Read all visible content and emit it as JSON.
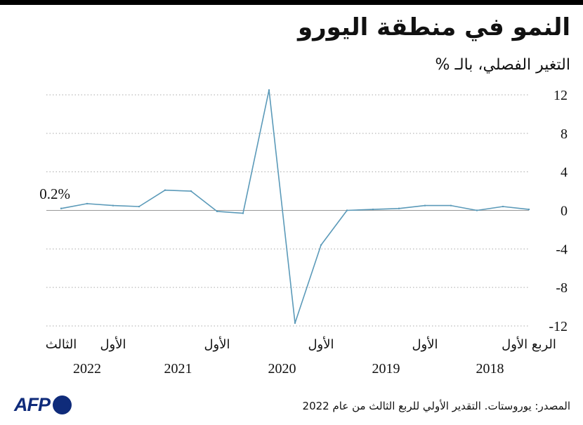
{
  "header": {
    "title": "النمو في منطقة اليورو",
    "subtitle": "التغير الفصلي، بالـ %"
  },
  "footer": {
    "source": "المصدر: يوروستات. التقدير الأولي للربع الثالث من عام 2022",
    "logo_text": "AFP"
  },
  "colors": {
    "line": "#5b9ab9",
    "grid": "#aaaaaa",
    "zero_line": "#999999",
    "logo": "#0f2b7a",
    "text": "#111111"
  },
  "chart_data": {
    "type": "line",
    "title": "النمو في منطقة اليورو",
    "subtitle": "التغير الفصلي، بالـ %",
    "xlabel": "",
    "ylabel": "",
    "x_direction": "right-to-left",
    "ylim": [
      -12,
      12
    ],
    "y_ticks": [
      12,
      8,
      4,
      0,
      -4,
      -8,
      -12
    ],
    "grid": true,
    "x": [
      "2018-Q1",
      "2018-Q2",
      "2018-Q3",
      "2018-Q4",
      "2019-Q1",
      "2019-Q2",
      "2019-Q3",
      "2019-Q4",
      "2020-Q1",
      "2020-Q2",
      "2020-Q3",
      "2020-Q4",
      "2021-Q1",
      "2021-Q2",
      "2021-Q3",
      "2021-Q4",
      "2022-Q1",
      "2022-Q2",
      "2022-Q3"
    ],
    "series": [
      {
        "values": [
          0.1,
          0.4,
          0.0,
          0.5,
          0.5,
          0.2,
          0.1,
          0.0,
          -3.6,
          -11.7,
          12.5,
          -0.3,
          -0.1,
          2.0,
          2.1,
          0.4,
          0.5,
          0.7,
          0.2
        ]
      }
    ],
    "annotations": [
      {
        "text": "0.2%"
      }
    ],
    "quarter_labels": [
      {
        "text": "الربع الأول",
        "index": 0
      },
      {
        "text": "الأول",
        "index": 4
      },
      {
        "text": "الأول",
        "index": 8
      },
      {
        "text": "الأول",
        "index": 12
      },
      {
        "text": "الأول",
        "index": 16
      },
      {
        "text": "الثالث",
        "index": 18
      }
    ],
    "year_labels": [
      {
        "text": "2018",
        "index": 1.5
      },
      {
        "text": "2019",
        "index": 5.5
      },
      {
        "text": "2020",
        "index": 9.5
      },
      {
        "text": "2021",
        "index": 13.5
      },
      {
        "text": "2022",
        "index": 17
      }
    ]
  }
}
